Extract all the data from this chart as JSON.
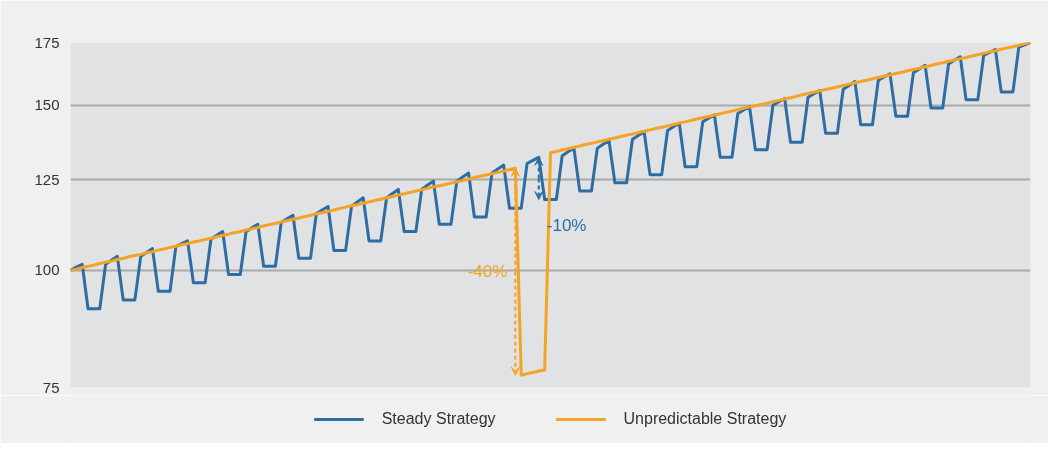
{
  "chart_data": {
    "type": "line",
    "log": true,
    "ylim": [
      75,
      175
    ],
    "yticks": [
      75,
      100,
      125,
      150,
      175
    ],
    "tick_labels": "y",
    "grid": "y",
    "legend": "bottom",
    "marker": "none",
    "line_style": "solid",
    "categories": [
      null,
      null,
      null,
      null,
      null,
      null,
      null,
      null,
      null,
      null,
      null,
      null,
      null,
      null,
      null,
      null,
      null,
      null,
      null,
      null,
      null,
      null,
      null,
      null,
      null,
      null,
      null,
      null,
      null,
      null,
      null,
      null,
      null,
      null,
      null,
      null,
      null,
      null,
      null,
      null,
      null,
      null,
      null,
      null,
      null,
      null,
      null,
      null,
      null,
      null,
      null,
      null,
      null,
      null,
      null,
      null,
      null,
      null,
      null,
      null,
      null,
      null,
      null,
      null,
      null,
      null,
      null,
      null,
      null,
      null,
      null,
      null,
      null,
      null,
      null,
      null,
      null,
      null,
      null,
      null,
      null,
      null,
      null,
      null,
      null,
      null,
      null,
      null,
      null,
      null,
      null,
      null,
      null,
      null,
      null,
      null,
      null,
      null,
      null,
      null,
      null,
      null,
      null,
      null,
      null,
      null,
      null,
      null,
      null,
      null,
      null,
      null,
      null,
      null,
      null,
      null,
      null,
      null,
      null,
      null,
      null,
      null,
      null,
      null,
      null,
      null,
      null,
      null,
      null,
      null,
      null,
      null,
      null,
      null,
      null,
      null,
      null,
      null,
      null,
      null,
      null,
      null,
      null,
      null,
      null,
      null,
      null,
      null,
      null,
      null,
      null,
      null,
      null,
      null,
      null,
      null,
      null,
      null,
      null,
      null,
      null,
      null,
      null,
      null,
      null
    ],
    "series": [
      {
        "name": "Steady Strategy",
        "color": "#2e6da4",
        "values": [
          100,
          100.8,
          101.5,
          91,
          91,
          91,
          101.5,
          102.5,
          103.5,
          93,
          93,
          93,
          103.5,
          104.5,
          105.5,
          95,
          95,
          95,
          106,
          106.8,
          107.5,
          97,
          97,
          97,
          108,
          109,
          110,
          99,
          99,
          99,
          110,
          111,
          112,
          101,
          101,
          101,
          112.5,
          113.5,
          114.5,
          103,
          103,
          103,
          115,
          116,
          117,
          105,
          105,
          105,
          117,
          118.3,
          119.5,
          107.5,
          107.5,
          107.5,
          119.5,
          120.8,
          122,
          110,
          110,
          110,
          122,
          123.3,
          124.5,
          112,
          112,
          112,
          124.5,
          125.8,
          127,
          114,
          114,
          114,
          127,
          128.3,
          129.5,
          116.5,
          116.5,
          116.5,
          130,
          131,
          132,
          119,
          119,
          119,
          132.5,
          133.8,
          135,
          121.5,
          121.5,
          121.5,
          135,
          136.3,
          137.5,
          124,
          124,
          124,
          138,
          139.3,
          140.5,
          126.5,
          126.5,
          126.5,
          141,
          142.3,
          143.5,
          129,
          129,
          129,
          144,
          145.3,
          146.5,
          132,
          132,
          132,
          147,
          148.3,
          149.5,
          134.5,
          134.5,
          134.5,
          150,
          151.3,
          152.5,
          137,
          137,
          137,
          153,
          154.3,
          155.5,
          140,
          140,
          140,
          156,
          157.5,
          159,
          143,
          143,
          143,
          159.5,
          160.8,
          162,
          146,
          146,
          146,
          162.5,
          164,
          165.5,
          149,
          149,
          149,
          166,
          167.5,
          169,
          152,
          152,
          152,
          169.5,
          170.8,
          172,
          155,
          155,
          155,
          173,
          174,
          175
        ]
      },
      {
        "name": "Unpredictable Strategy",
        "color": "#f4a324",
        "values": [
          100,
          100.3,
          100.7,
          101,
          101.3,
          101.7,
          102,
          102.3,
          102.7,
          103,
          103.4,
          103.7,
          104,
          104.4,
          104.7,
          105.1,
          105.4,
          105.8,
          106.1,
          106.5,
          106.8,
          107.2,
          107.5,
          107.9,
          108.2,
          108.6,
          109,
          109.3,
          109.7,
          110,
          110.4,
          110.8,
          111.1,
          111.5,
          111.9,
          112.2,
          112.6,
          113,
          113.4,
          113.7,
          114.1,
          114.5,
          114.9,
          115.2,
          115.6,
          116,
          116.4,
          116.8,
          117.2,
          117.5,
          117.9,
          118.3,
          118.7,
          119.1,
          119.5,
          119.9,
          120.3,
          120.7,
          121.1,
          121.5,
          121.9,
          122.3,
          122.7,
          123.1,
          123.5,
          123.9,
          124.3,
          124.7,
          125.1,
          125.6,
          126,
          126.4,
          126.8,
          127.2,
          127.6,
          128.1,
          128.5,
          77.3,
          77.6,
          77.8,
          78.1,
          78.3,
          133.5,
          133.9,
          134.4,
          134.8,
          135.3,
          135.7,
          136.2,
          136.6,
          137.1,
          137.5,
          138,
          138.4,
          138.9,
          139.4,
          139.8,
          140.3,
          140.7,
          141.2,
          141.7,
          142.1,
          142.6,
          143.1,
          143.6,
          144,
          144.5,
          145,
          145.5,
          145.9,
          146.4,
          146.9,
          147.4,
          147.9,
          148.4,
          148.9,
          149.4,
          149.8,
          150.3,
          150.8,
          151.3,
          151.8,
          152.3,
          152.8,
          153.3,
          153.9,
          154.4,
          154.9,
          155.4,
          155.9,
          156.4,
          156.9,
          157.4,
          158,
          158.5,
          159,
          159.5,
          160.1,
          160.6,
          161.1,
          161.6,
          162.2,
          162.7,
          163.3,
          163.8,
          164.3,
          164.9,
          165.4,
          166,
          166.5,
          167.1,
          167.6,
          168.2,
          168.7,
          169.3,
          169.8,
          170.4,
          171,
          171.5,
          172.1,
          172.7,
          173.2,
          173.8,
          174.4,
          175
        ]
      }
    ],
    "annotations": [
      "-10%",
      "-40%"
    ]
  }
}
